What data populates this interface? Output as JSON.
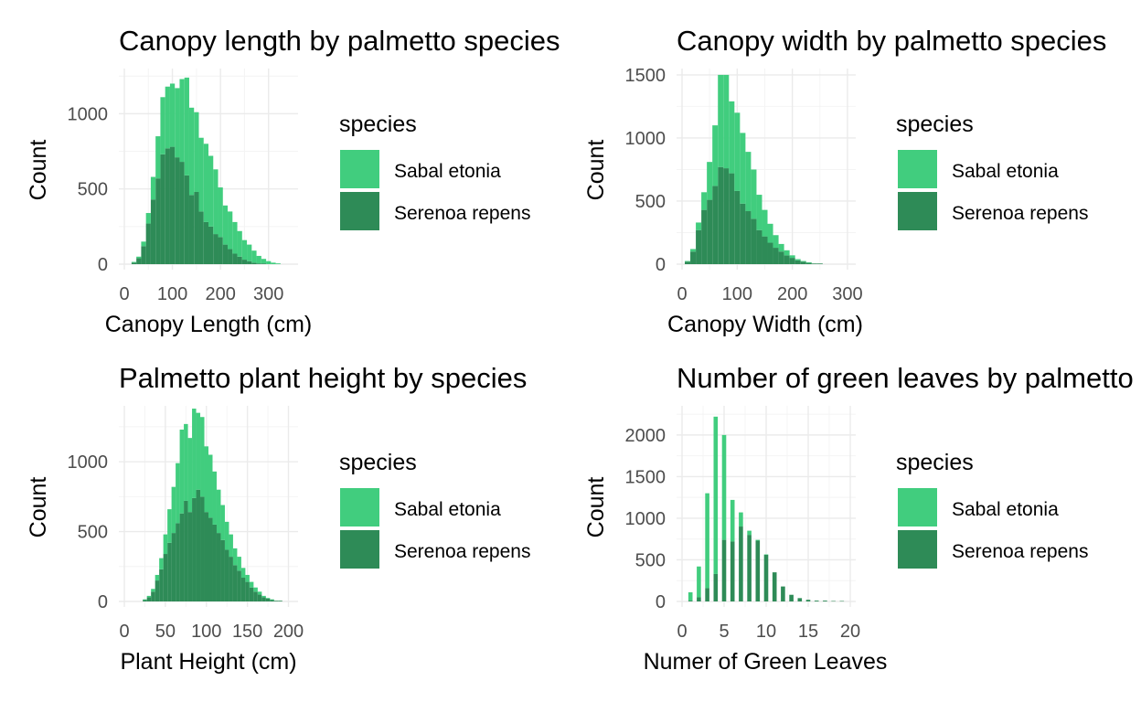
{
  "colors": {
    "Sabal etonia": "#41cd7e",
    "Serenoa repens": "#2e8b57",
    "grid_major": "#ebebeb",
    "grid_minor": "#f4f4f4",
    "tick_text": "#4d4d4d"
  },
  "legend": {
    "title": "species",
    "position": "right",
    "entries": [
      "Sabal etonia",
      "Serenoa repens"
    ]
  },
  "chart_data": [
    {
      "type": "bar",
      "histogram": true,
      "stacked": true,
      "title": "Canopy length by palmetto species",
      "xlabel": "Canopy Length (cm)",
      "ylabel": "Count",
      "grid": true,
      "xlim": [
        0,
        350
      ],
      "ylim": [
        0,
        1300
      ],
      "xticks": [
        0,
        100,
        200,
        300
      ],
      "yticks": [
        0,
        500,
        1000
      ],
      "bin_centers": [
        20,
        30,
        40,
        50,
        60,
        70,
        80,
        90,
        100,
        110,
        120,
        130,
        140,
        150,
        160,
        170,
        180,
        190,
        200,
        210,
        220,
        230,
        240,
        250,
        260,
        270,
        280,
        290,
        300,
        310,
        320,
        330,
        340
      ],
      "series": [
        {
          "name": "Serenoa repens",
          "values": [
            10,
            40,
            120,
            270,
            430,
            570,
            730,
            770,
            780,
            710,
            680,
            590,
            460,
            480,
            350,
            280,
            250,
            200,
            180,
            130,
            100,
            70,
            50,
            30,
            20,
            10,
            5,
            5,
            0,
            0,
            0,
            0,
            0
          ]
        },
        {
          "name": "Sabal etonia",
          "values": [
            5,
            10,
            30,
            70,
            150,
            280,
            380,
            410,
            420,
            460,
            550,
            650,
            580,
            530,
            490,
            520,
            470,
            430,
            330,
            260,
            250,
            210,
            170,
            130,
            110,
            80,
            50,
            30,
            20,
            10,
            5,
            0,
            0
          ]
        }
      ]
    },
    {
      "type": "bar",
      "histogram": true,
      "stacked": true,
      "title": "Canopy width by palmetto species",
      "xlabel": "Canopy Width (cm)",
      "ylabel": "Count",
      "grid": true,
      "xlim": [
        0,
        305
      ],
      "ylim": [
        0,
        1550
      ],
      "xticks": [
        0,
        100,
        200,
        300
      ],
      "yticks": [
        0,
        500,
        1000,
        1500
      ],
      "bin_centers": [
        10,
        20,
        30,
        40,
        50,
        60,
        70,
        80,
        90,
        100,
        110,
        120,
        130,
        140,
        150,
        160,
        170,
        180,
        190,
        200,
        210,
        220,
        230,
        240,
        250,
        260,
        270
      ],
      "series": [
        {
          "name": "Serenoa repens",
          "values": [
            20,
            100,
            270,
            430,
            510,
            620,
            770,
            760,
            720,
            580,
            480,
            420,
            360,
            270,
            220,
            170,
            130,
            100,
            70,
            50,
            30,
            20,
            10,
            5,
            5,
            0,
            0
          ]
        },
        {
          "name": "Sabal etonia",
          "values": [
            5,
            20,
            60,
            140,
            300,
            480,
            730,
            740,
            570,
            620,
            560,
            470,
            390,
            280,
            210,
            150,
            100,
            60,
            40,
            20,
            10,
            5,
            5,
            0,
            0,
            0,
            0
          ]
        }
      ]
    },
    {
      "type": "bar",
      "histogram": true,
      "stacked": true,
      "title": "Palmetto plant height by species",
      "xlabel": "Plant Height (cm)",
      "ylabel": "Count",
      "grid": true,
      "xlim": [
        0,
        205
      ],
      "ylim": [
        0,
        1400
      ],
      "xticks": [
        0,
        50,
        100,
        150,
        200
      ],
      "yticks": [
        0,
        500,
        1000
      ],
      "bin_centers": [
        25,
        30,
        35,
        40,
        45,
        50,
        55,
        60,
        65,
        70,
        75,
        80,
        85,
        90,
        95,
        100,
        105,
        110,
        115,
        120,
        125,
        130,
        135,
        140,
        145,
        150,
        155,
        160,
        165,
        170,
        175,
        180,
        185,
        190,
        195
      ],
      "series": [
        {
          "name": "Serenoa repens",
          "values": [
            10,
            30,
            70,
            150,
            230,
            340,
            420,
            490,
            560,
            630,
            720,
            640,
            740,
            800,
            750,
            640,
            600,
            550,
            490,
            440,
            370,
            320,
            260,
            220,
            170,
            140,
            100,
            70,
            50,
            30,
            20,
            10,
            5,
            5,
            0
          ]
        },
        {
          "name": "Sabal etonia",
          "values": [
            5,
            10,
            20,
            40,
            80,
            140,
            240,
            330,
            430,
            600,
            550,
            530,
            640,
            550,
            570,
            470,
            450,
            380,
            310,
            250,
            200,
            160,
            120,
            100,
            70,
            50,
            40,
            30,
            20,
            10,
            5,
            5,
            0,
            0,
            0
          ]
        }
      ]
    },
    {
      "type": "bar",
      "histogram": true,
      "stacked": true,
      "title": "Number of green leaves by palmetto species",
      "xlabel": "Numer of Green Leaves",
      "ylabel": "Count",
      "grid": true,
      "xlim": [
        0,
        20
      ],
      "ylim": [
        0,
        2350
      ],
      "xticks": [
        0,
        5,
        10,
        15,
        20
      ],
      "yticks": [
        0,
        500,
        1000,
        1500,
        2000
      ],
      "bin_centers": [
        0,
        0.5,
        1,
        1.5,
        2,
        2.5,
        3,
        3.5,
        4,
        4.5,
        5,
        5.5,
        6,
        6.5,
        7,
        7.5,
        8,
        8.5,
        9,
        9.5,
        10,
        10.5,
        11,
        11.5,
        12,
        12.5,
        13,
        13.5,
        14,
        14.5,
        15,
        15.5,
        16,
        16.5,
        17,
        17.5,
        18,
        18.5,
        19,
        19.5
      ],
      "series": [
        {
          "name": "Serenoa repens",
          "values": [
            0,
            0,
            10,
            0,
            50,
            0,
            160,
            0,
            330,
            0,
            740,
            0,
            720,
            0,
            900,
            0,
            800,
            0,
            730,
            0,
            560,
            0,
            350,
            0,
            180,
            0,
            80,
            0,
            40,
            0,
            20,
            0,
            10,
            0,
            10,
            0,
            5,
            0,
            5,
            0
          ]
        },
        {
          "name": "Sabal etonia",
          "values": [
            0,
            0,
            100,
            0,
            370,
            0,
            1140,
            0,
            1890,
            0,
            1260,
            0,
            500,
            0,
            170,
            0,
            50,
            0,
            10,
            0,
            5,
            0,
            0,
            0,
            0,
            0,
            0,
            0,
            0,
            0,
            0,
            0,
            0,
            0,
            0,
            0,
            0,
            0,
            0,
            0
          ]
        }
      ]
    }
  ]
}
